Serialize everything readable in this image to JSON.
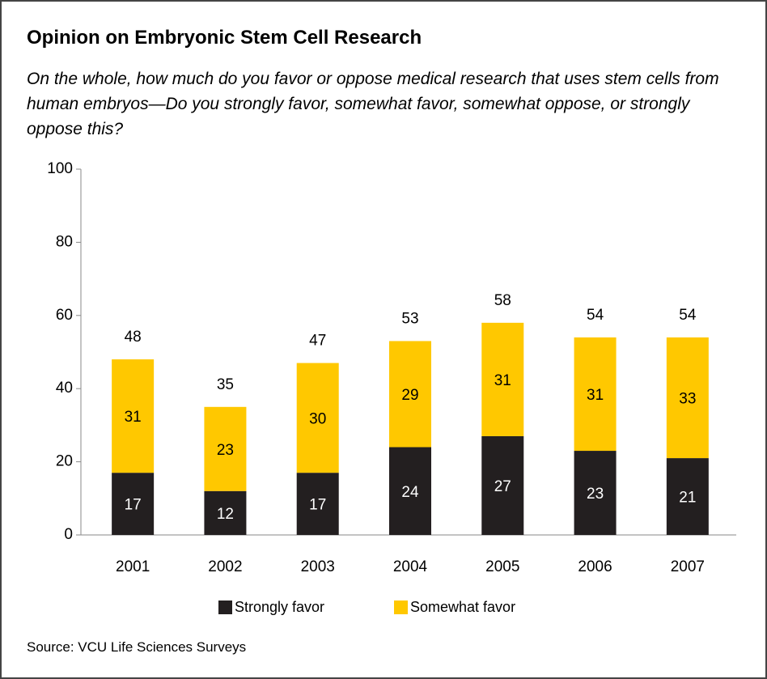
{
  "chart_data": {
    "type": "stacked_bar",
    "title": "Opinion on Embryonic Stem Cell Research",
    "subtitle": "On the whole, how much do you favor or oppose medical research that uses stem cells from human embryos—Do you strongly favor, somewhat favor, somewhat oppose, or strongly oppose this?",
    "source": "Source: VCU Life Sciences Surveys",
    "categories": [
      "2001",
      "2002",
      "2003",
      "2004",
      "2005",
      "2006",
      "2007"
    ],
    "series": [
      {
        "name": "Strongly favor",
        "color": "#231f20",
        "label_color": "#ffffff",
        "values": [
          17,
          12,
          17,
          24,
          27,
          23,
          21
        ]
      },
      {
        "name": "Somewhat favor",
        "color": "#ffc800",
        "label_color": "#000000",
        "values": [
          31,
          23,
          30,
          29,
          31,
          31,
          33
        ]
      }
    ],
    "totals": [
      48,
      35,
      47,
      53,
      58,
      54,
      54
    ],
    "ylim": [
      0,
      100
    ],
    "yticks": [
      0,
      20,
      40,
      60,
      80,
      100
    ],
    "grid": false
  }
}
